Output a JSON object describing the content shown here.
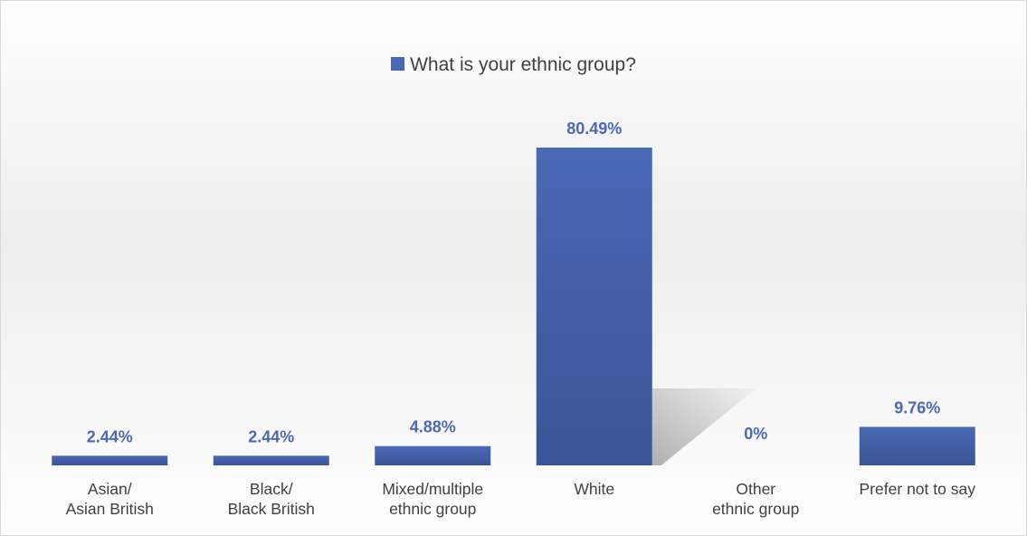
{
  "chart_data": {
    "type": "bar",
    "categories": [
      "Asian/\nAsian British",
      "Black/\nBlack British",
      "Mixed/multiple\nethnic group",
      "White",
      "Other\nethnic group",
      "Prefer not to say"
    ],
    "series": [
      {
        "name": "What is your ethnic group?",
        "values": [
          2.44,
          2.44,
          4.88,
          80.49,
          0,
          9.76
        ]
      }
    ],
    "data_labels": [
      "2.44%",
      "2.44%",
      "4.88%",
      "80.49%",
      "0%",
      "9.76%"
    ],
    "title": "",
    "xlabel": "",
    "ylabel": "",
    "ylim": [
      0,
      80.49
    ],
    "grid": false,
    "legend": "top-center"
  },
  "colors": {
    "bar_top": "#4a69b5",
    "bar_bottom": "#3a5497",
    "label": "#4a69b5",
    "text": "#404040"
  }
}
